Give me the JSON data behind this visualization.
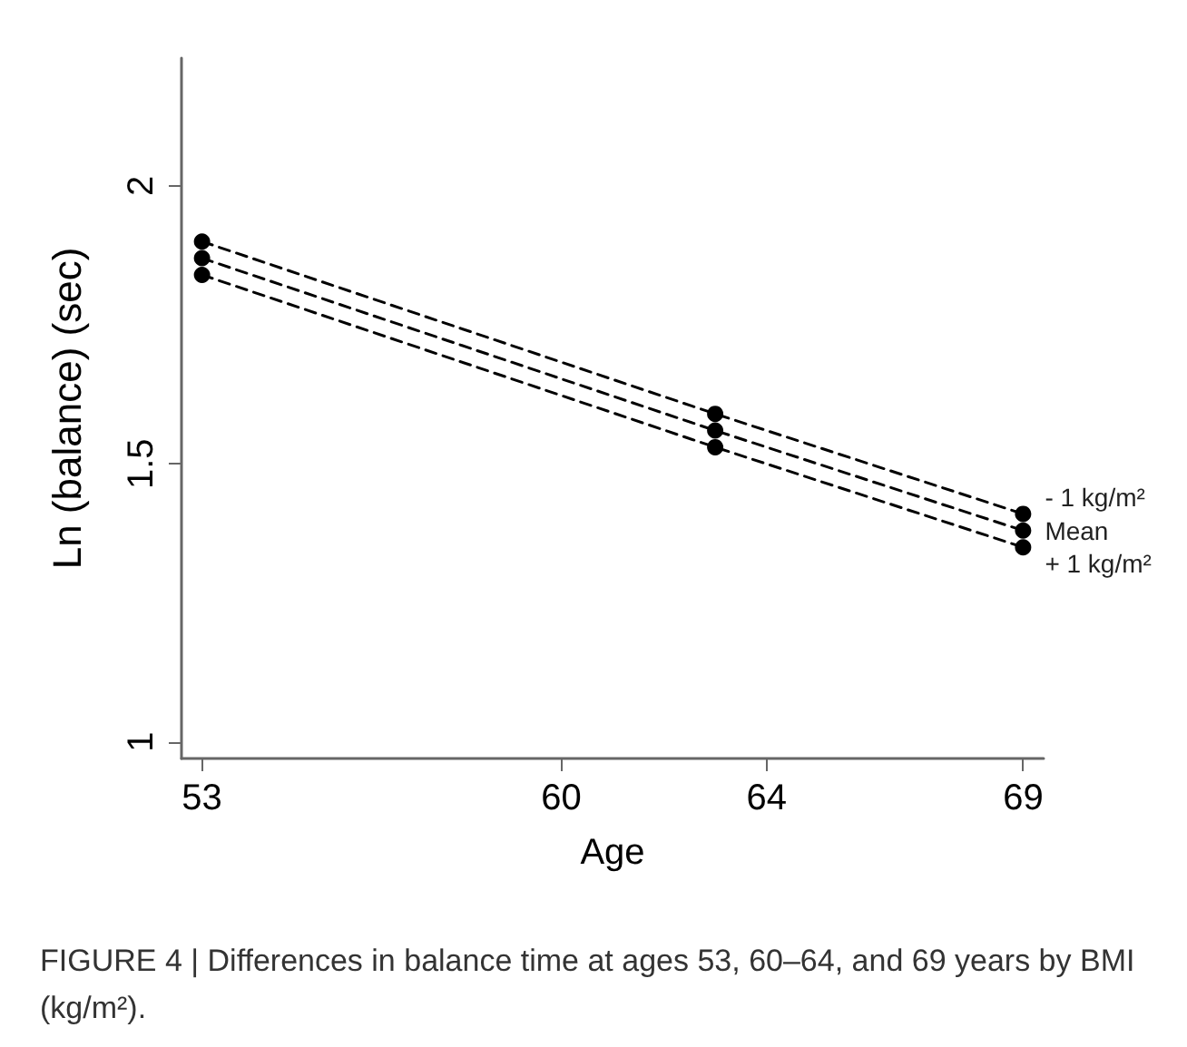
{
  "chart_data": {
    "type": "line",
    "xlabel": "Age",
    "ylabel": "Ln (balance) (sec)",
    "annotations": [
      "FIGURE 4 | Differences in balance time at ages 53, 60–64, and 69 years by BMI (kg/m²)."
    ],
    "x": [
      53,
      63,
      69
    ],
    "series": [
      {
        "name": "- 1 kg/m²",
        "color": "#000000",
        "values": [
          1.9,
          1.59,
          1.41
        ]
      },
      {
        "name": "Mean",
        "color": "#000000",
        "values": [
          1.87,
          1.56,
          1.38
        ]
      },
      {
        "name": "+ 1 kg/m²",
        "color": "#000000",
        "values": [
          1.84,
          1.53,
          1.35
        ]
      }
    ],
    "xlim": [
      52.6,
      69.4
    ],
    "xticks": [
      53,
      60,
      64,
      69
    ],
    "ylim": [
      0.97,
      2.23
    ],
    "yticks": [
      1,
      1.5,
      2
    ],
    "grid": false,
    "legend": false,
    "marker": "circle",
    "line_style": "dashed"
  }
}
